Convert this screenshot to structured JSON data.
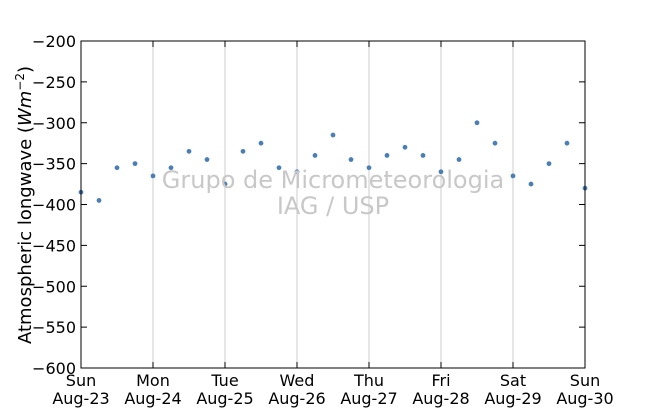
{
  "chart_data": {
    "type": "scatter",
    "title": "",
    "ylabel_text": "Atmospheric longwave (",
    "ylabel_unit_base": "Wm",
    "ylabel_unit_exp": "−2",
    "ylabel_close": ")",
    "ylim": [
      -600,
      -200
    ],
    "yticks": [
      -200,
      -250,
      -300,
      -350,
      -400,
      -450,
      -500,
      -550,
      -600
    ],
    "ytick_labels": [
      "−200",
      "−250",
      "−300",
      "−350",
      "−400",
      "−450",
      "−500",
      "−550",
      "−600"
    ],
    "xlim": [
      "2015-08-23",
      "2015-08-30"
    ],
    "xticks": [
      {
        "day": "Sun",
        "date": "Aug-23"
      },
      {
        "day": "Mon",
        "date": "Aug-24"
      },
      {
        "day": "Tue",
        "date": "Aug-25"
      },
      {
        "day": "Wed",
        "date": "Aug-26"
      },
      {
        "day": "Thu",
        "date": "Aug-27"
      },
      {
        "day": "Fri",
        "date": "Aug-28"
      },
      {
        "day": "Sat",
        "date": "Aug-29"
      },
      {
        "day": "Sun",
        "date": "Aug-30"
      }
    ],
    "grid": "vertical",
    "marker_color": "#4a7fb5",
    "series": [
      {
        "x_days": [
          0.0,
          0.25,
          0.5,
          0.75,
          1.0,
          1.25,
          1.5,
          1.75,
          2.0,
          2.25,
          2.5,
          2.75,
          3.0,
          3.25,
          3.5,
          3.75,
          4.0,
          4.25,
          4.5,
          4.75,
          5.0,
          5.25,
          5.5,
          5.75,
          6.0,
          6.25,
          6.5,
          6.75,
          7.0
        ],
        "y": [
          -385,
          -395,
          -355,
          -350,
          -365,
          -355,
          -335,
          -345,
          -375,
          -335,
          -325,
          -355,
          -360,
          -340,
          -315,
          -345,
          -355,
          -340,
          -330,
          -340,
          -360,
          -345,
          -300,
          -325,
          -365,
          -375,
          -350,
          -325,
          -380
        ]
      }
    ]
  },
  "watermark": {
    "line1": "Grupo de Micrometeorologia",
    "line2": "IAG / USP"
  }
}
